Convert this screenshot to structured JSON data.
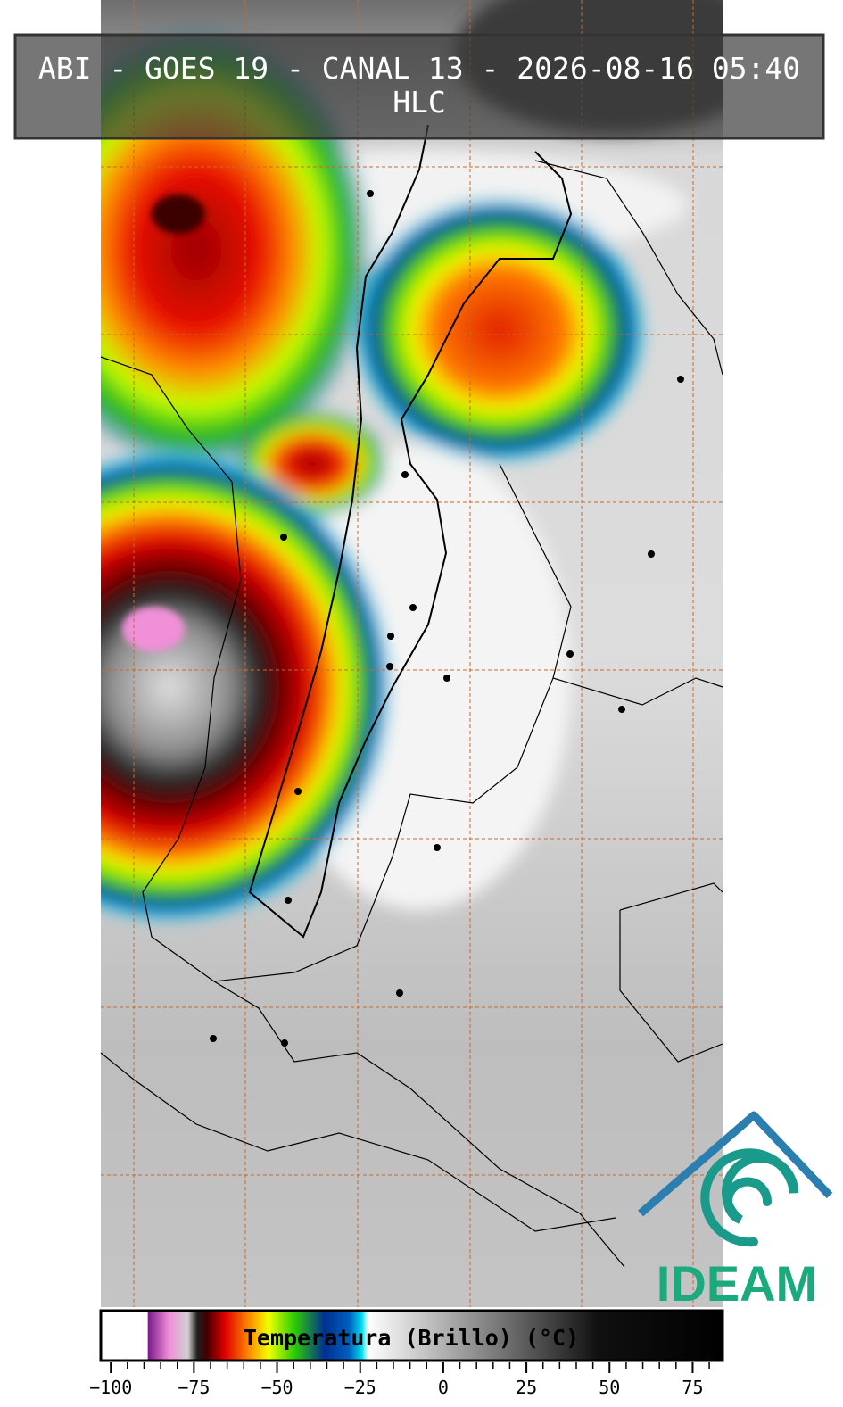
{
  "header": {
    "title": "ABI - GOES 19 - CANAL 13 - 2026-08-16 05:40",
    "subtitle": "HLC"
  },
  "colorbar": {
    "label": "Temperatura (Brillo) (°C)",
    "lim": [
      -103,
      84
    ],
    "ticks": [
      {
        "value": -100,
        "label": "−100"
      },
      {
        "value": -75,
        "label": "−75"
      },
      {
        "value": -50,
        "label": "−50"
      },
      {
        "value": -25,
        "label": "−25"
      },
      0,
      25,
      50,
      75
    ]
  },
  "logo": {
    "text": "IDEAM"
  }
}
